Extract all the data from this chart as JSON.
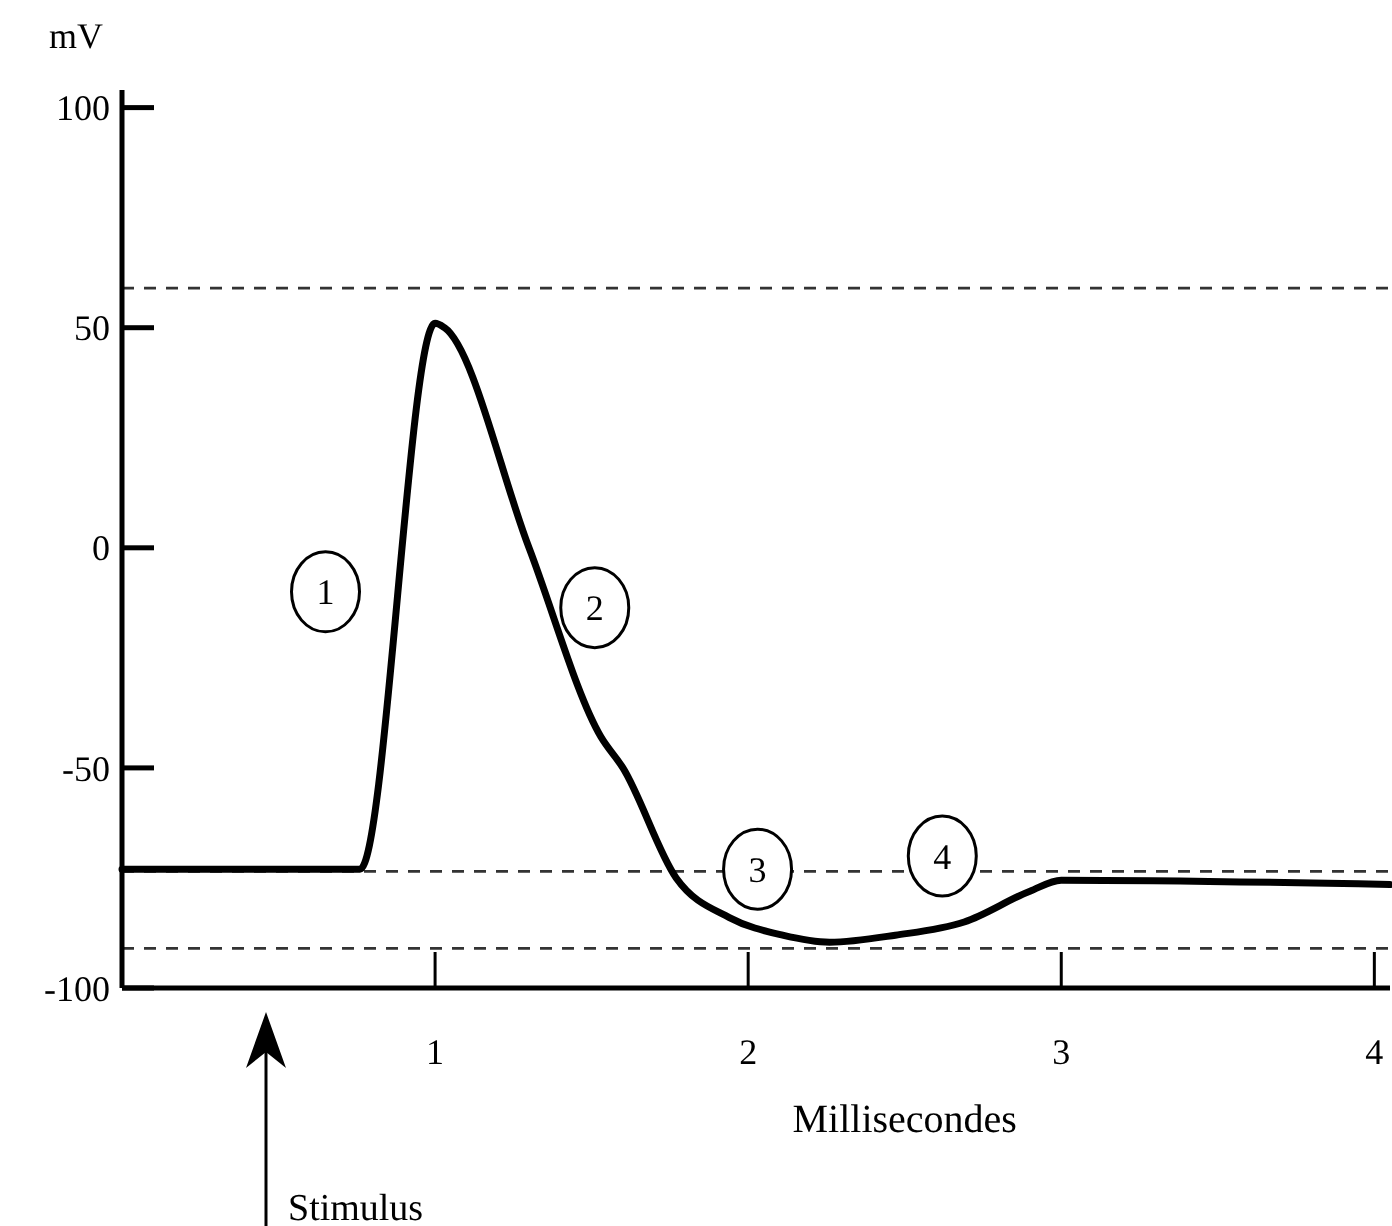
{
  "chart_data": {
    "type": "line",
    "xlabel": "Millisecondes",
    "ylabel": "mV",
    "x": [
      0,
      0.76,
      1.0,
      1.03,
      1.3,
      1.53,
      1.6,
      1.77,
      1.94,
      2.11,
      2.26,
      2.47,
      2.69,
      2.9,
      3.0,
      4.05
    ],
    "series": [
      {
        "color": "#000000",
        "values": [
          -73,
          -73,
          51,
          50,
          0,
          -43,
          -50,
          -75,
          -84,
          -88,
          -89.6,
          -88,
          -85,
          -78,
          -75.5,
          -76.5
        ]
      }
    ],
    "xlim": [
      0,
      4.05
    ],
    "ylim": [
      -100,
      104
    ],
    "xticks": [
      1,
      2,
      3,
      4
    ],
    "yticks": [
      -100,
      -50,
      0,
      50,
      100
    ],
    "ref_lines": [
      {
        "axis": "y",
        "value": 59,
        "line_style": "dashed"
      },
      {
        "axis": "y",
        "value": -73.5,
        "line_style": "dashed"
      },
      {
        "axis": "y",
        "value": -91,
        "line_style": "dashed"
      }
    ],
    "annotations": [
      {
        "text": "1",
        "x": 0.65,
        "y": -10
      },
      {
        "text": "2",
        "x": 1.51,
        "y": -13.6
      },
      {
        "text": "3",
        "x": 2.03,
        "y": -73
      },
      {
        "text": "4",
        "x": 2.62,
        "y": -70
      },
      "Stimulus"
    ],
    "grid": false,
    "marker": "none",
    "line_style": "solid"
  }
}
